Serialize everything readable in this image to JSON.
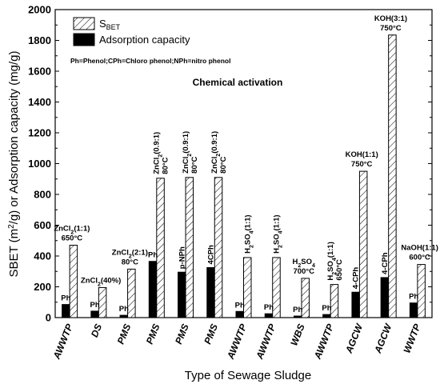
{
  "chart_data": {
    "type": "bar",
    "title": "Chemical activation",
    "note": "Ph=Phenol;CPh=Chloro phenol;NPh=nitro phenol",
    "xlabel": "Type of Sewage Sludge",
    "ylabel": "SBET (m²/g) or Adsorption capacity (mg/g)",
    "ylim": [
      0,
      2000
    ],
    "yticks": [
      0,
      200,
      400,
      600,
      800,
      1000,
      1200,
      1400,
      1600,
      1800,
      2000
    ],
    "legend_position": "top-left",
    "categories": [
      "AWWTP",
      "DS",
      "PMS",
      "PMS",
      "PMS",
      "PMS",
      "AWWTP",
      "AWWTP",
      "WBS",
      "AWWTP",
      "AGCW",
      "AGCW",
      "WWTP"
    ],
    "series": [
      {
        "name": "S_BET",
        "pattern": "hatched",
        "values": [
          470,
          195,
          315,
          905,
          910,
          910,
          390,
          390,
          255,
          215,
          950,
          1835,
          345
        ]
      },
      {
        "name": "Adsorption capacity",
        "color": "#000000",
        "values": [
          85,
          42,
          15,
          365,
          295,
          325,
          40,
          25,
          10,
          20,
          165,
          260,
          95
        ]
      }
    ],
    "adsorbate_labels": [
      "Ph",
      "Ph",
      "Ph",
      "Ph",
      "p-NPh",
      "4CPh",
      "Ph",
      "Ph",
      "Ph",
      "Ph",
      "4-CPh",
      "4-CPh",
      "Ph"
    ],
    "activation_labels": [
      {
        "lines": [
          "ZnCl₂(1:1)",
          "650°C"
        ],
        "vertical": false
      },
      {
        "lines": [
          "ZnCl₂(40%)"
        ],
        "vertical": false
      },
      {
        "lines": [
          "ZnCl₂(2:1)",
          "80°C"
        ],
        "vertical": false
      },
      {
        "lines": [
          "ZnCl₂(0.9:1)",
          "80°C"
        ],
        "vertical": true
      },
      {
        "lines": [
          "ZnCl₂(0.9:1)",
          "80°C"
        ],
        "vertical": true
      },
      {
        "lines": [
          "ZnCl₂(0.9:1)",
          "80°C"
        ],
        "vertical": true
      },
      {
        "lines": [
          "H₂SO₄(1:1)"
        ],
        "vertical": true
      },
      {
        "lines": [
          "H₂SO₄(1:1)"
        ],
        "vertical": true
      },
      {
        "lines": [
          "H₂SO₄",
          "700°C"
        ],
        "vertical": false
      },
      {
        "lines": [
          "H₂SO₄(1:1)",
          "650°C"
        ],
        "vertical": true
      },
      {
        "lines": [
          "KOH(1:1)",
          "750°C"
        ],
        "vertical": false
      },
      {
        "lines": [
          "KOH(3:1)",
          "750°C"
        ],
        "vertical": false
      },
      {
        "lines": [
          "NaOH(1:1)",
          "600°C"
        ],
        "vertical": false
      }
    ]
  }
}
